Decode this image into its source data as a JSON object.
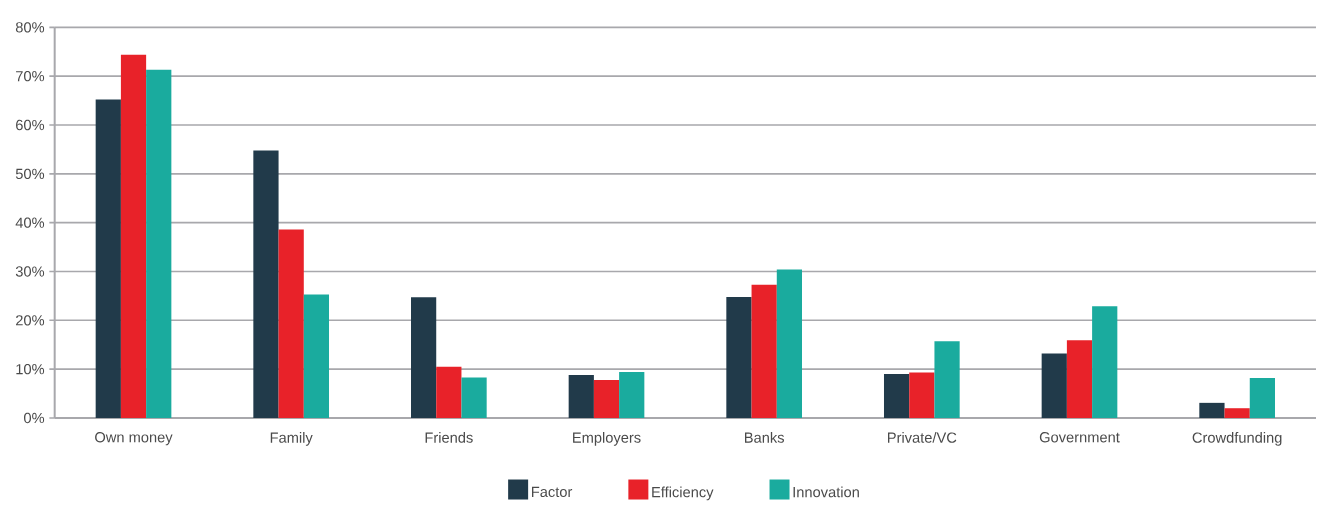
{
  "chart_data": {
    "type": "bar",
    "categories": [
      "Own money",
      "Family",
      "Friends",
      "Employers",
      "Banks",
      "Private/VC",
      "Government",
      "Crowdfunding"
    ],
    "series": [
      {
        "name": "Factor",
        "color": "#213a4a",
        "values": [
          65.2,
          54.8,
          24.7,
          8.8,
          24.8,
          9.0,
          13.2,
          3.1
        ]
      },
      {
        "name": "Efficiency",
        "color": "#e82229",
        "values": [
          74.4,
          38.6,
          10.5,
          7.8,
          27.3,
          9.3,
          15.9,
          2.0
        ]
      },
      {
        "name": "Innovation",
        "color": "#1aab9e",
        "values": [
          71.3,
          25.3,
          8.3,
          9.4,
          30.4,
          15.7,
          22.9,
          8.2
        ]
      }
    ],
    "ylim": [
      0,
      80
    ],
    "yticks": [
      {
        "value": 0,
        "label": "0%"
      },
      {
        "value": 10,
        "label": "10%"
      },
      {
        "value": 20,
        "label": "20%"
      },
      {
        "value": 30,
        "label": "30%"
      },
      {
        "value": 40,
        "label": "40%"
      },
      {
        "value": 50,
        "label": "50%"
      },
      {
        "value": 60,
        "label": "60%"
      },
      {
        "value": 70,
        "label": "70%"
      },
      {
        "value": 80,
        "label": "80%"
      }
    ],
    "grid": "y",
    "legend": "bottom"
  }
}
